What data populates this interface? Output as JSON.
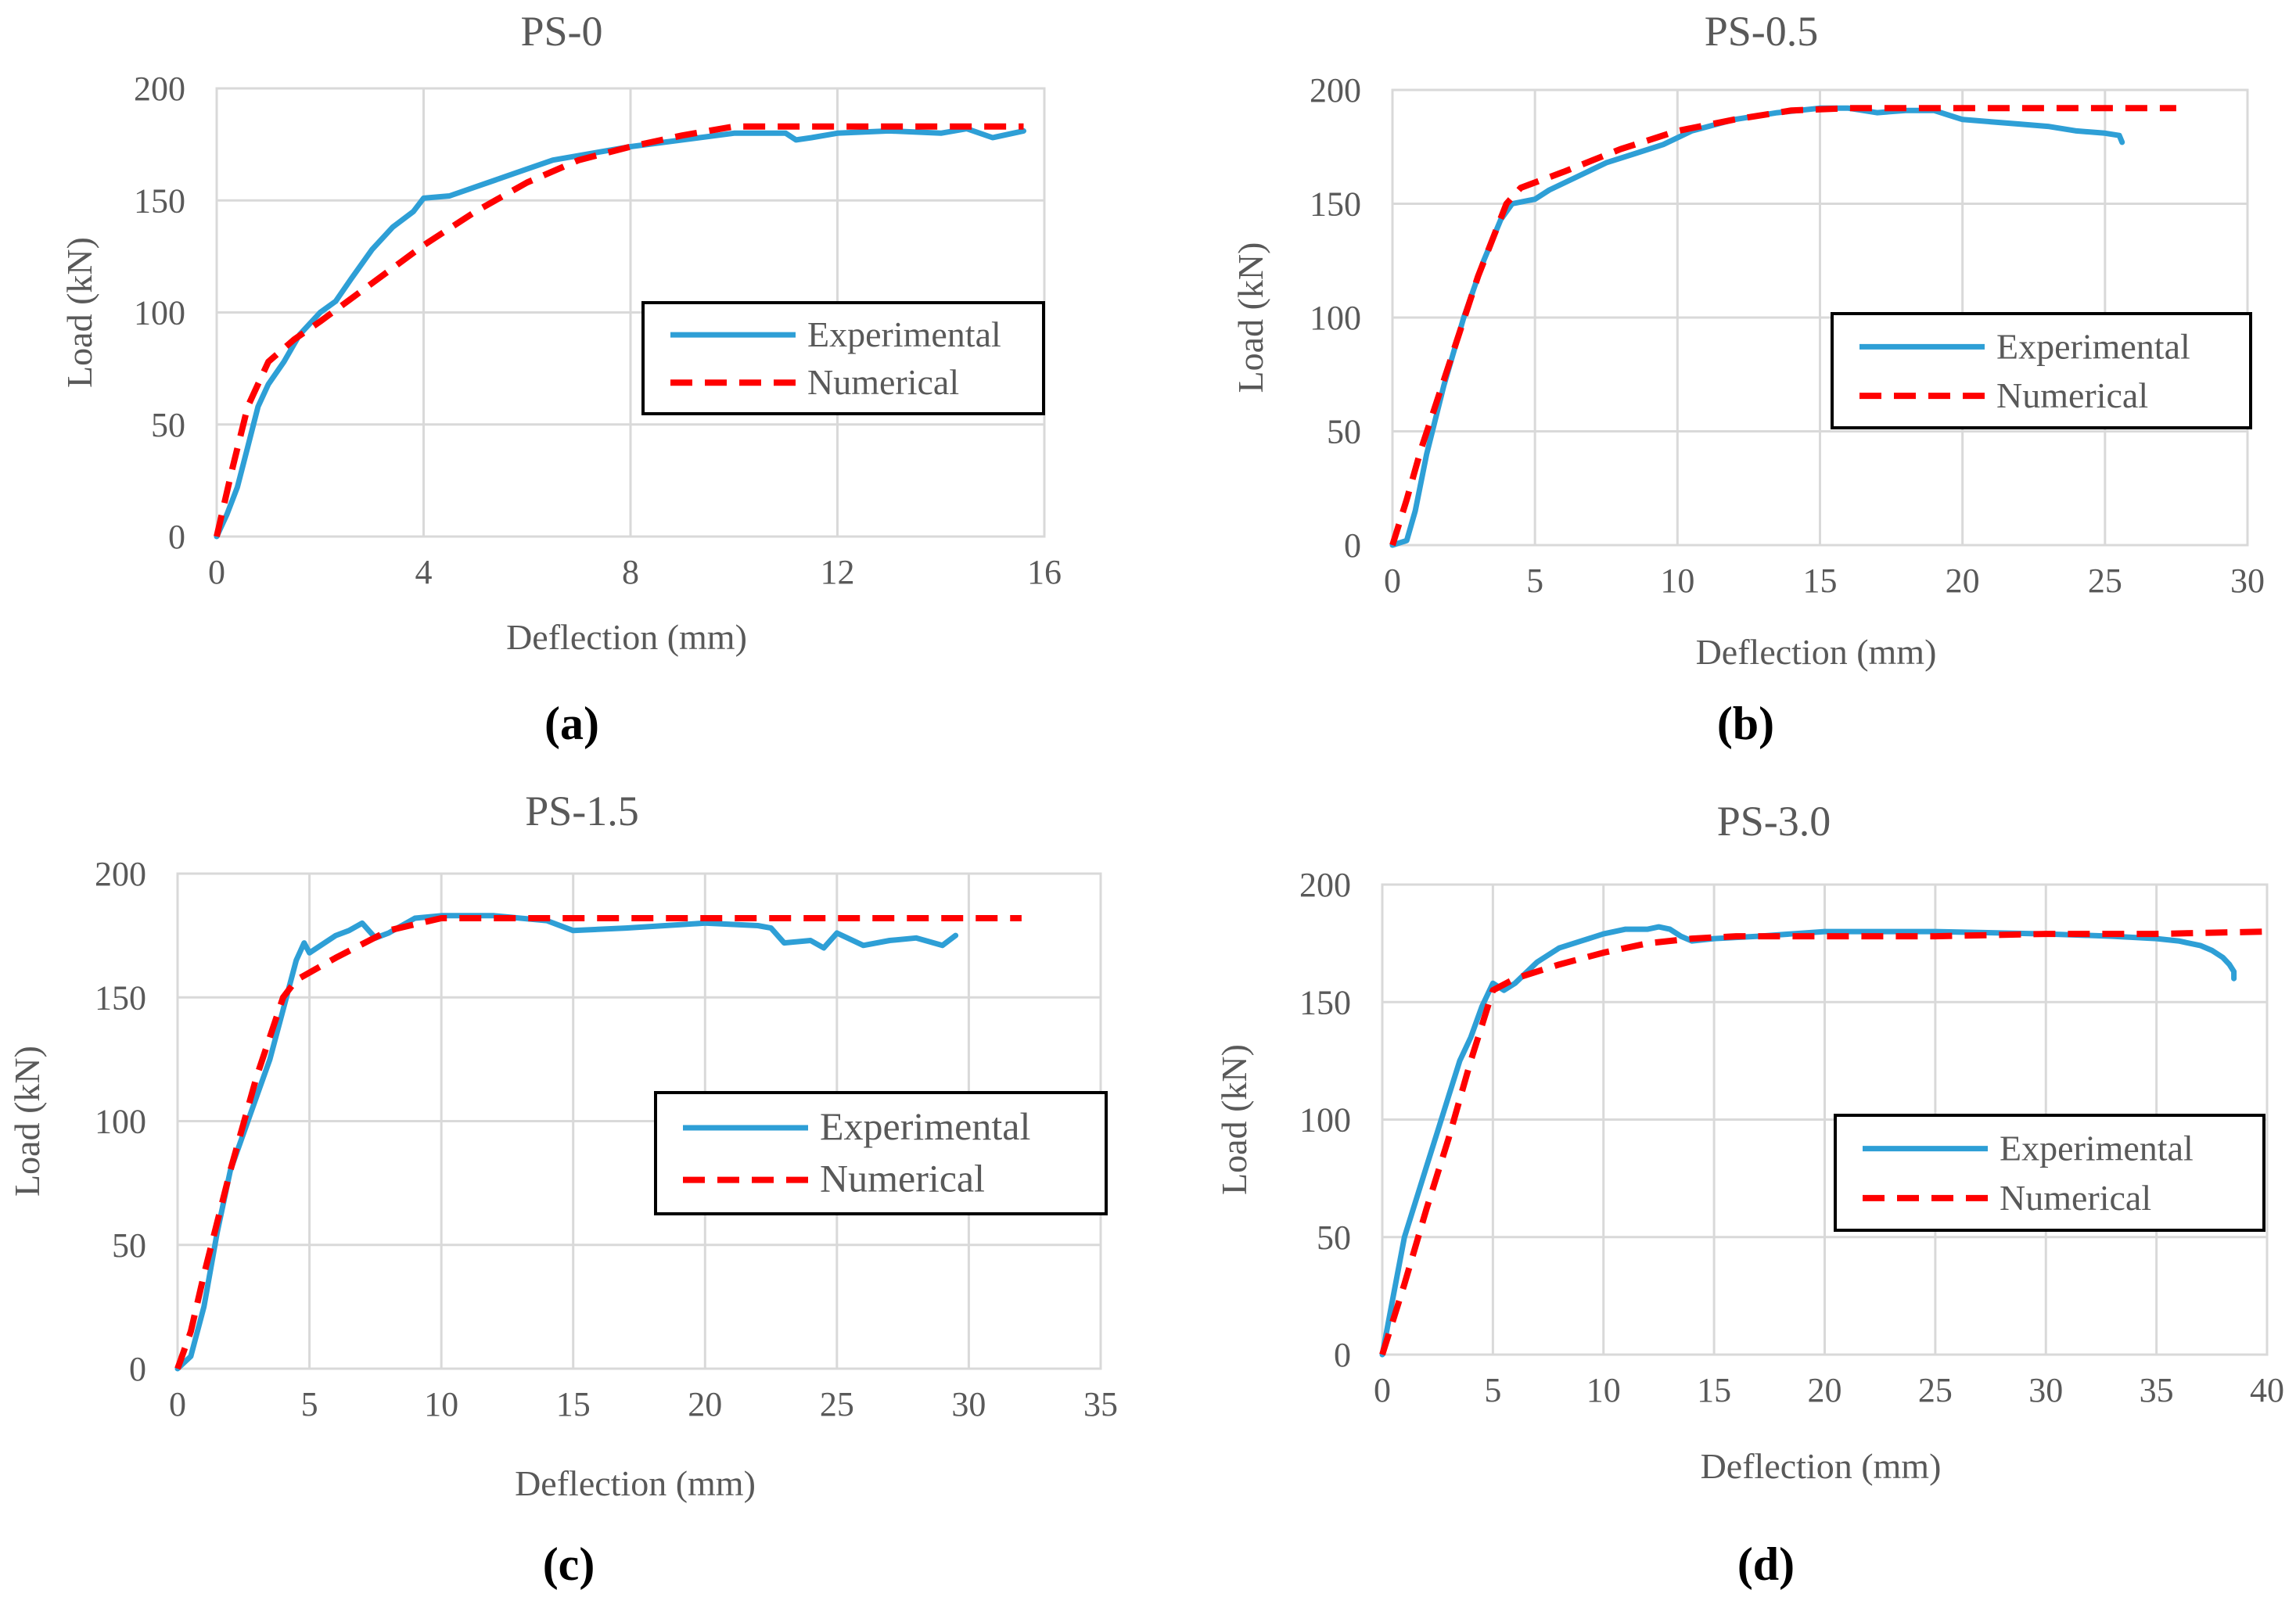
{
  "colors": {
    "experimental": "#2e9fd6",
    "numerical": "#ff0000",
    "grid": "#d9d9d9",
    "text": "#595959",
    "panel_label": "#000000",
    "legend_border": "#000000"
  },
  "chart_data": [
    {
      "type": "line",
      "panel_label": "(a)",
      "title": "PS-0",
      "xlabel": "Deflection (mm)",
      "ylabel": "Load (kN)",
      "xlim": [
        0,
        16
      ],
      "ylim": [
        0,
        200
      ],
      "xticks": [
        0,
        4,
        8,
        12,
        16
      ],
      "xtick_labels": [
        "0",
        "4",
        "8",
        "12",
        "16"
      ],
      "yticks": [
        0,
        50,
        100,
        150,
        200
      ],
      "ytick_labels": [
        "0",
        "50",
        "100",
        "150",
        "200"
      ],
      "grid": true,
      "legend_position": "center-right",
      "series": [
        {
          "name": "Experimental",
          "style": "solid",
          "x": [
            0,
            0.2,
            0.4,
            0.6,
            0.8,
            1.0,
            1.3,
            1.6,
            2.0,
            2.3,
            2.6,
            3.0,
            3.4,
            3.8,
            4.0,
            4.5,
            5.0,
            5.5,
            6.0,
            6.5,
            7.0,
            7.5,
            8.0,
            9.0,
            10.0,
            11.0,
            11.2,
            11.5,
            12.0,
            13.0,
            14.0,
            14.5,
            15.0,
            15.6
          ],
          "y": [
            0,
            10,
            22,
            40,
            58,
            68,
            78,
            90,
            100,
            105,
            115,
            128,
            138,
            145,
            151,
            152,
            156,
            160,
            164,
            168,
            170,
            172,
            174,
            177,
            180,
            180,
            177,
            178,
            180,
            181,
            180,
            182,
            178,
            181
          ]
        },
        {
          "name": "Numerical",
          "style": "dashed",
          "x": [
            0,
            0.3,
            0.6,
            1.0,
            1.5,
            2.0,
            3.0,
            4.0,
            5.0,
            6.0,
            7.0,
            8.0,
            9.0,
            10.0,
            11.0,
            12.0,
            13.0,
            14.0,
            15.0,
            15.6
          ],
          "y": [
            0,
            30,
            58,
            78,
            88,
            96,
            113,
            130,
            145,
            158,
            168,
            174,
            179,
            183,
            183,
            183,
            183,
            183,
            183,
            183
          ]
        }
      ]
    },
    {
      "type": "line",
      "panel_label": "(b)",
      "title": "PS-0.5",
      "xlabel": "Deflection (mm)",
      "ylabel": "Load (kN)",
      "xlim": [
        0,
        30
      ],
      "ylim": [
        0,
        200
      ],
      "xticks": [
        0,
        5,
        10,
        15,
        20,
        25,
        30
      ],
      "xtick_labels": [
        "0",
        "5",
        "10",
        "15",
        "20",
        "25",
        "30"
      ],
      "yticks": [
        0,
        50,
        100,
        150,
        200
      ],
      "ytick_labels": [
        "0",
        "50",
        "100",
        "150",
        "200"
      ],
      "grid": true,
      "legend_position": "center-right",
      "series": [
        {
          "name": "Experimental",
          "style": "solid",
          "x": [
            0,
            0.5,
            0.8,
            1.2,
            1.8,
            2.5,
            3.2,
            3.8,
            4.2,
            5.0,
            5.5,
            6.5,
            7.5,
            8.5,
            9.5,
            10.5,
            12.0,
            13.5,
            15.0,
            16.0,
            17.0,
            18.0,
            19.0,
            19.5,
            20.0,
            21.0,
            22.0,
            23.0,
            24.0,
            25.0,
            25.5,
            25.6
          ],
          "y": [
            0,
            2,
            15,
            40,
            70,
            100,
            125,
            143,
            150,
            152,
            156,
            162,
            168,
            172,
            176,
            182,
            187,
            190,
            192,
            192,
            190,
            191,
            191,
            189,
            187,
            186,
            185,
            184,
            182,
            181,
            180,
            177
          ]
        },
        {
          "name": "Numerical",
          "style": "dashed",
          "x": [
            0,
            0.5,
            1.0,
            2.0,
            3.0,
            4.0,
            4.5,
            6.0,
            8.0,
            10.0,
            12.0,
            14.0,
            16.0,
            18.0,
            20.0,
            22.0,
            24.0,
            26.0,
            27.5
          ],
          "y": [
            0,
            20,
            42,
            80,
            118,
            150,
            157,
            164,
            174,
            182,
            187,
            191,
            192,
            192,
            192,
            192,
            192,
            192,
            192
          ]
        }
      ]
    },
    {
      "type": "line",
      "panel_label": "(c)",
      "title": "PS-1.5",
      "xlabel": "Deflection (mm)",
      "ylabel": "Load (kN)",
      "xlim": [
        0,
        35
      ],
      "ylim": [
        0,
        200
      ],
      "xticks": [
        0,
        5,
        10,
        15,
        20,
        25,
        30,
        35
      ],
      "xtick_labels": [
        "0",
        "5",
        "10",
        "15",
        "20",
        "25",
        "30",
        "35"
      ],
      "yticks": [
        0,
        50,
        100,
        150,
        200
      ],
      "ytick_labels": [
        "0",
        "50",
        "100",
        "150",
        "200"
      ],
      "grid": true,
      "legend_position": "center-right",
      "series": [
        {
          "name": "Experimental",
          "style": "solid",
          "x": [
            0,
            0.5,
            1.0,
            1.5,
            2.0,
            3.0,
            3.5,
            4.0,
            4.5,
            4.8,
            5.0,
            6.0,
            6.5,
            7.0,
            7.5,
            8.0,
            9.0,
            10.0,
            11.0,
            12.0,
            13.0,
            14.0,
            15.0,
            17.0,
            20.0,
            22.0,
            22.5,
            23.0,
            24.0,
            24.5,
            25.0,
            26.0,
            27.0,
            28.0,
            29.0,
            29.5
          ],
          "y": [
            0,
            5,
            25,
            55,
            80,
            110,
            125,
            145,
            165,
            172,
            168,
            175,
            177,
            180,
            174,
            176,
            182,
            183,
            183,
            183,
            182,
            181,
            177,
            178,
            180,
            179,
            178,
            172,
            173,
            170,
            176,
            171,
            173,
            174,
            171,
            175
          ]
        },
        {
          "name": "Numerical",
          "style": "dashed",
          "x": [
            0,
            0.5,
            1.0,
            2.0,
            3.0,
            4.0,
            4.5,
            6.0,
            8.0,
            10.0,
            12.0,
            15.0,
            18.0,
            20.0,
            25.0,
            30.0,
            32.0
          ],
          "y": [
            0,
            15,
            38,
            80,
            118,
            150,
            157,
            166,
            177,
            182,
            182,
            182,
            182,
            182,
            182,
            182,
            182
          ]
        }
      ]
    },
    {
      "type": "line",
      "panel_label": "(d)",
      "title": "PS-3.0",
      "xlabel": "Deflection (mm)",
      "ylabel": "Load (kN)",
      "xlim": [
        0,
        40
      ],
      "ylim": [
        0,
        200
      ],
      "xticks": [
        0,
        5,
        10,
        15,
        20,
        25,
        30,
        35,
        40
      ],
      "xtick_labels": [
        "0",
        "5",
        "10",
        "15",
        "20",
        "25",
        "30",
        "35",
        "40"
      ],
      "yticks": [
        0,
        50,
        100,
        150,
        200
      ],
      "ytick_labels": [
        "0",
        "50",
        "100",
        "150",
        "200"
      ],
      "grid": true,
      "legend_position": "center-right",
      "series": [
        {
          "name": "Experimental",
          "style": "solid",
          "x": [
            0,
            0.5,
            1.0,
            1.5,
            2.0,
            2.5,
            3.0,
            3.5,
            4.0,
            4.5,
            5.0,
            5.5,
            6.0,
            7.0,
            8.0,
            9.0,
            10.0,
            10.5,
            11.0,
            12.0,
            12.5,
            13.0,
            13.5,
            14.0,
            15.0,
            17.0,
            20.0,
            25.0,
            30.0,
            33.0,
            35.0,
            36.0,
            37.0,
            37.5,
            38.0,
            38.3,
            38.5,
            38.5
          ],
          "y": [
            0,
            25,
            50,
            65,
            80,
            95,
            110,
            125,
            135,
            148,
            158,
            155,
            158,
            167,
            173,
            176,
            179,
            180,
            181,
            181,
            182,
            181,
            178,
            176,
            177,
            178,
            180,
            180,
            179,
            178,
            177,
            176,
            174,
            172,
            169,
            166,
            163,
            160
          ]
        },
        {
          "name": "Numerical",
          "style": "dashed",
          "x": [
            0,
            1.0,
            2.0,
            3.0,
            4.0,
            5.0,
            6.0,
            8.0,
            10.0,
            12.0,
            14.0,
            16.0,
            20.0,
            25.0,
            30.0,
            35.0,
            40.0
          ],
          "y": [
            0,
            30,
            62,
            92,
            125,
            155,
            160,
            166,
            171,
            175,
            177,
            178,
            178,
            178,
            179,
            179,
            180
          ]
        }
      ]
    }
  ]
}
